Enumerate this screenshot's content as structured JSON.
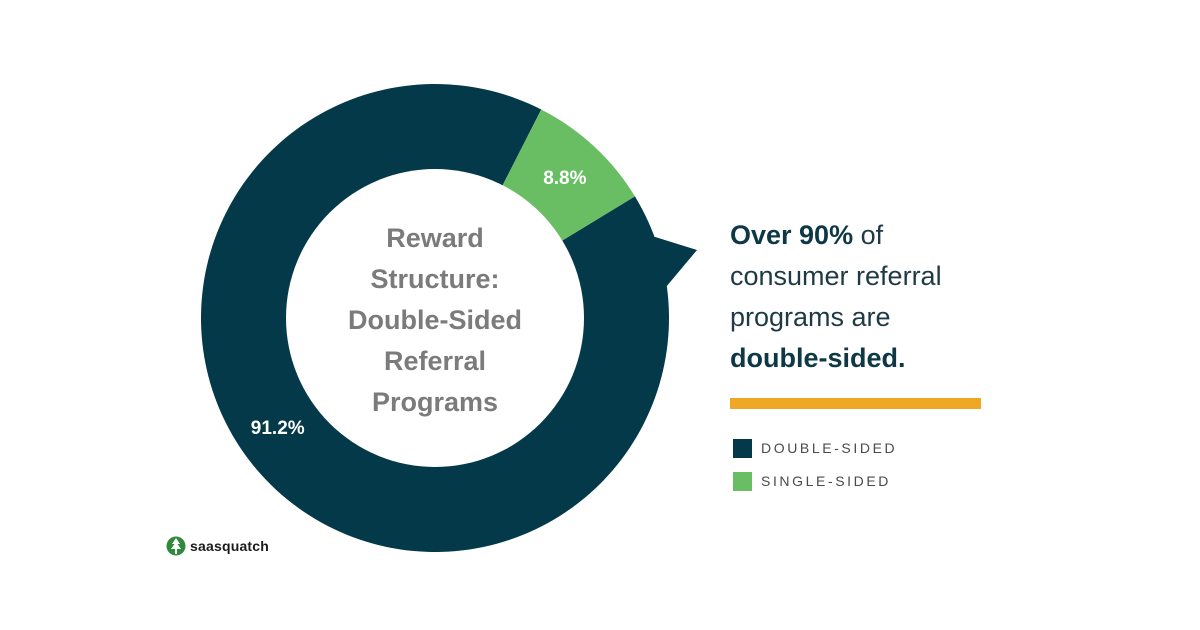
{
  "chart_data": {
    "type": "pie",
    "title_lines": [
      "Reward",
      "Structure:",
      "Double-Sided",
      "Referral",
      "Programs"
    ],
    "slices": [
      {
        "name": "DOUBLE-SIDED",
        "value": 91.2,
        "label": "91.2%",
        "color": "#04394a"
      },
      {
        "name": "SINGLE-SIDED",
        "value": 8.8,
        "label": "8.8%",
        "color": "#69be64"
      }
    ],
    "legend_placement": "right"
  },
  "headline": {
    "line1_bold": "Over 90%",
    "line1_rest": " of",
    "line2": "consumer referral",
    "line3": "programs are",
    "line4_bold": "double-sided."
  },
  "colors": {
    "accent_bar": "#f0a726",
    "double_sided": "#04394a",
    "single_sided": "#69be64",
    "center_text": "#7b7b7b"
  },
  "logo": {
    "text": "saasquatch",
    "icon": "tree-icon"
  }
}
